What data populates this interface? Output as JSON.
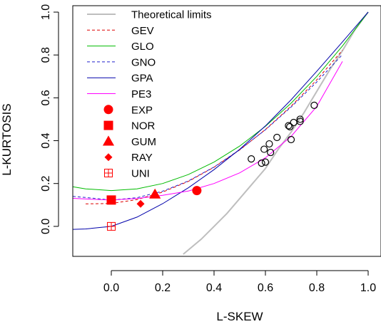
{
  "chart_data": {
    "type": "scatter",
    "title": "",
    "xlabel": "L-SKEW",
    "ylabel": "L-KURTOSIS",
    "xlim": [
      -0.15,
      1.05
    ],
    "ylim": [
      -0.14,
      1.03
    ],
    "x_ticks": [
      0.0,
      0.2,
      0.4,
      0.6,
      0.8,
      1.0
    ],
    "x_tick_labels": [
      "0.0",
      "0.2",
      "0.4",
      "0.6",
      "0.8",
      "1.0"
    ],
    "y_ticks": [
      0.0,
      0.2,
      0.4,
      0.6,
      0.8,
      1.0
    ],
    "y_tick_labels": [
      "0.0",
      "0.2",
      "0.4",
      "0.6",
      "0.8",
      "1.0"
    ],
    "grid": false,
    "legend_position": "top-left",
    "series": [
      {
        "name": "Theoretical limits",
        "kind": "line",
        "color": "#BEBEBE",
        "dash": "solid",
        "width": 2,
        "x": [
          0.28,
          0.35,
          0.4,
          0.45,
          0.5,
          0.55,
          0.6,
          0.65,
          0.7,
          0.75,
          0.8,
          0.85,
          0.9,
          0.95,
          1.0
        ],
        "y": [
          -0.13,
          -0.06,
          -0.0,
          0.06,
          0.13,
          0.2,
          0.27,
          0.36,
          0.44,
          0.53,
          0.63,
          0.73,
          0.82,
          0.92,
          1.0
        ]
      },
      {
        "name": "GEV",
        "kind": "line",
        "color": "#DD0000",
        "dash": "dashed",
        "width": 1,
        "x": [
          -0.1,
          0.0,
          0.1,
          0.2,
          0.3,
          0.4,
          0.5,
          0.6,
          0.7,
          0.8,
          0.9
        ],
        "y": [
          0.105,
          0.107,
          0.125,
          0.16,
          0.21,
          0.276,
          0.357,
          0.452,
          0.561,
          0.684,
          0.822
        ]
      },
      {
        "name": "GLO",
        "kind": "line",
        "color": "#00BB00",
        "dash": "solid",
        "width": 1,
        "x": [
          -0.15,
          -0.1,
          0.0,
          0.1,
          0.2,
          0.3,
          0.4,
          0.5,
          0.6,
          0.7,
          0.8,
          0.9,
          1.0
        ],
        "y": [
          0.185,
          0.175,
          0.167,
          0.175,
          0.2,
          0.242,
          0.3,
          0.375,
          0.467,
          0.575,
          0.7,
          0.842,
          1.0
        ]
      },
      {
        "name": "GNO",
        "kind": "line",
        "color": "#2222CC",
        "dash": "dashed",
        "width": 1,
        "x": [
          -0.15,
          -0.1,
          0.0,
          0.1,
          0.2,
          0.3,
          0.4,
          0.5,
          0.6,
          0.7,
          0.8,
          0.9
        ],
        "y": [
          0.14,
          0.135,
          0.123,
          0.134,
          0.164,
          0.212,
          0.277,
          0.358,
          0.451,
          0.557,
          0.674,
          0.802
        ]
      },
      {
        "name": "GPA",
        "kind": "line",
        "color": "#0000AA",
        "dash": "solid",
        "width": 1,
        "x": [
          -0.15,
          -0.1,
          0.0,
          0.1,
          0.2,
          0.3,
          0.4,
          0.5,
          0.6,
          0.7,
          0.8,
          0.9,
          1.0
        ],
        "y": [
          -0.014,
          -0.012,
          0.0,
          0.043,
          0.106,
          0.18,
          0.265,
          0.36,
          0.469,
          0.591,
          0.724,
          0.861,
          1.0
        ]
      },
      {
        "name": "PE3",
        "kind": "line",
        "color": "#FF00FF",
        "dash": "solid",
        "width": 1,
        "x": [
          -0.15,
          -0.1,
          0.0,
          0.1,
          0.2,
          0.3,
          0.4,
          0.5,
          0.6,
          0.7,
          0.8,
          0.9
        ],
        "y": [
          0.131,
          0.128,
          0.123,
          0.13,
          0.145,
          0.165,
          0.2,
          0.25,
          0.32,
          0.42,
          0.56,
          0.77
        ]
      },
      {
        "name": "EXP",
        "kind": "point",
        "marker": "circle",
        "color": "#FF0000",
        "x": [
          0.333
        ],
        "y": [
          0.167
        ]
      },
      {
        "name": "NOR",
        "kind": "point",
        "marker": "square",
        "color": "#FF0000",
        "x": [
          0.0
        ],
        "y": [
          0.123
        ]
      },
      {
        "name": "GUM",
        "kind": "point",
        "marker": "triangle",
        "color": "#FF0000",
        "x": [
          0.17
        ],
        "y": [
          0.15
        ]
      },
      {
        "name": "RAY",
        "kind": "point",
        "marker": "diamond",
        "color": "#FF0000",
        "x": [
          0.114
        ],
        "y": [
          0.105
        ]
      },
      {
        "name": "UNI",
        "kind": "point",
        "marker": "boxplus",
        "color": "#FF0000",
        "x": [
          0.0
        ],
        "y": [
          0.0
        ]
      },
      {
        "kind": "point",
        "marker": "open-circle",
        "color": "#000000",
        "x": [
          0.545,
          0.585,
          0.595,
          0.6,
          0.615,
          0.62,
          0.645,
          0.69,
          0.695,
          0.7,
          0.71,
          0.735,
          0.735,
          0.79
        ],
        "y": [
          0.315,
          0.295,
          0.36,
          0.3,
          0.385,
          0.345,
          0.415,
          0.47,
          0.465,
          0.405,
          0.485,
          0.49,
          0.5,
          0.565
        ]
      }
    ]
  }
}
